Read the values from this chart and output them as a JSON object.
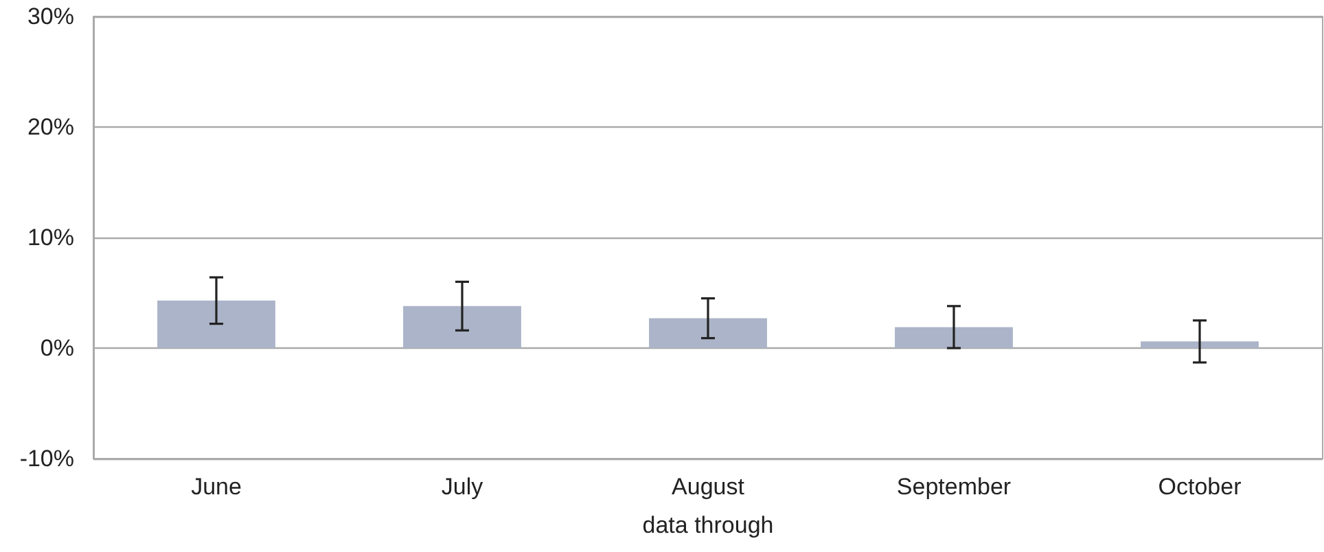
{
  "chart_data": {
    "type": "bar",
    "xlabel": "data through",
    "categories": [
      "June",
      "July",
      "August",
      "September",
      "October"
    ],
    "values": [
      4.3,
      3.8,
      2.7,
      1.9,
      0.6
    ],
    "errors": [
      2.1,
      2.2,
      1.8,
      1.9,
      1.9
    ],
    "color": "#abb4c8",
    "ylim": [
      -10,
      30
    ],
    "yticks": [
      {
        "value": -10,
        "label": "-10%"
      },
      {
        "value": 0,
        "label": "0%"
      },
      {
        "value": 10,
        "label": "10%"
      },
      {
        "value": 20,
        "label": "20%"
      },
      {
        "value": 30,
        "label": "30%"
      }
    ],
    "grid": "y"
  }
}
